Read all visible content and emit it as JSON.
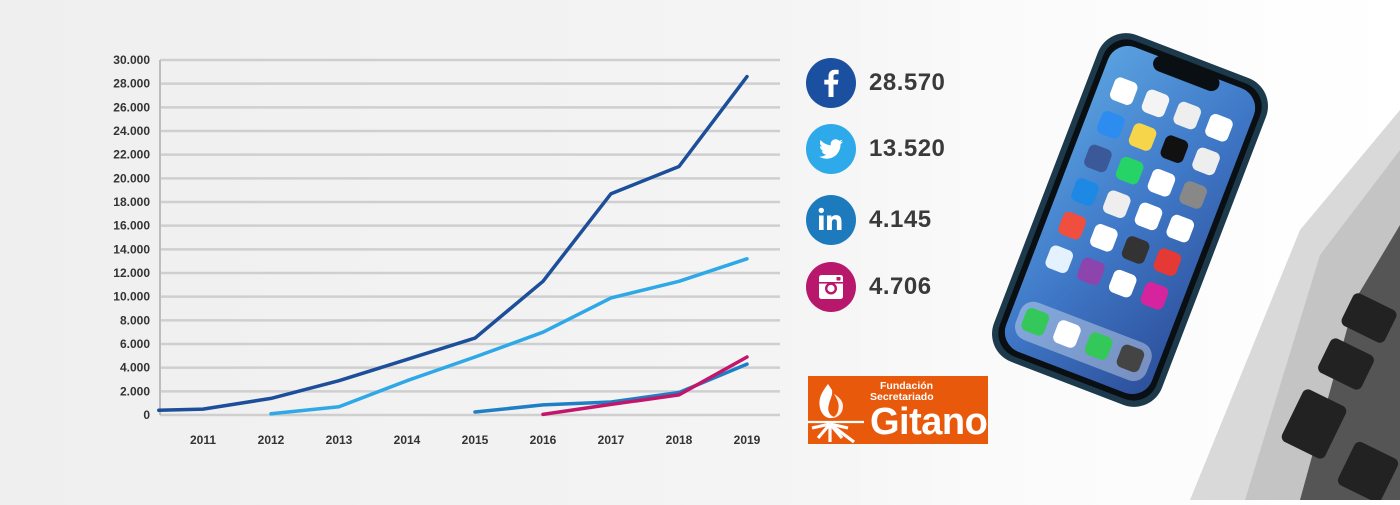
{
  "chart_data": {
    "type": "line",
    "x": [
      2011,
      2012,
      2013,
      2014,
      2015,
      2016,
      2017,
      2018,
      2019
    ],
    "x_tick_labels": [
      "2011",
      "2012",
      "2013",
      "2014",
      "2015",
      "2016",
      "2017",
      "2018",
      "2019"
    ],
    "y_tick_labels": [
      "0",
      "2.000",
      "4.000",
      "6.000",
      "8.000",
      "10.000",
      "12.000",
      "14.000",
      "16.000",
      "18.000",
      "20.000",
      "22.000",
      "24.000",
      "26.000",
      "28.000",
      "30.000"
    ],
    "ylim": [
      0,
      30000
    ],
    "y_tick_step": 2000,
    "xlim": [
      2010.35,
      2019.45
    ],
    "grid": true,
    "series": [
      {
        "name": "Facebook",
        "color": "#1d4e9a",
        "points": [
          [
            2010.35,
            400
          ],
          [
            2011,
            500
          ],
          [
            2012,
            1400
          ],
          [
            2013,
            2900
          ],
          [
            2014,
            4700
          ],
          [
            2015,
            6500
          ],
          [
            2016,
            11300
          ],
          [
            2017,
            18700
          ],
          [
            2018,
            21000
          ],
          [
            2019,
            28600
          ]
        ]
      },
      {
        "name": "Twitter",
        "color": "#2fa8e8",
        "points": [
          [
            2012,
            100
          ],
          [
            2013,
            700
          ],
          [
            2014,
            2900
          ],
          [
            2015,
            4900
          ],
          [
            2016,
            7000
          ],
          [
            2017,
            9900
          ],
          [
            2018,
            11300
          ],
          [
            2019,
            13200
          ]
        ]
      },
      {
        "name": "LinkedIn",
        "color": "#1f7fc4",
        "points": [
          [
            2015,
            250
          ],
          [
            2016,
            850
          ],
          [
            2017,
            1100
          ],
          [
            2018,
            1900
          ],
          [
            2019,
            4300
          ]
        ]
      },
      {
        "name": "Instagram",
        "color": "#c3166b",
        "points": [
          [
            2016,
            50
          ],
          [
            2017,
            900
          ],
          [
            2018,
            1700
          ],
          [
            2019,
            4900
          ]
        ]
      }
    ]
  },
  "social_stats": [
    {
      "network": "Facebook",
      "icon": "facebook-icon",
      "value": "28.570",
      "color": "#1b4fa0"
    },
    {
      "network": "Twitter",
      "icon": "twitter-icon",
      "value": "13.520",
      "color": "#2ea9ea"
    },
    {
      "network": "LinkedIn",
      "icon": "linkedin-icon",
      "value": "4.145",
      "color": "#1d7bbd"
    },
    {
      "network": "Instagram",
      "icon": "instagram-icon",
      "value": "4.706",
      "color": "#b8186c"
    }
  ],
  "logo": {
    "line1": "Fundación",
    "line2": "Secretariado",
    "name": "Gitano",
    "color": "#e8590c"
  }
}
